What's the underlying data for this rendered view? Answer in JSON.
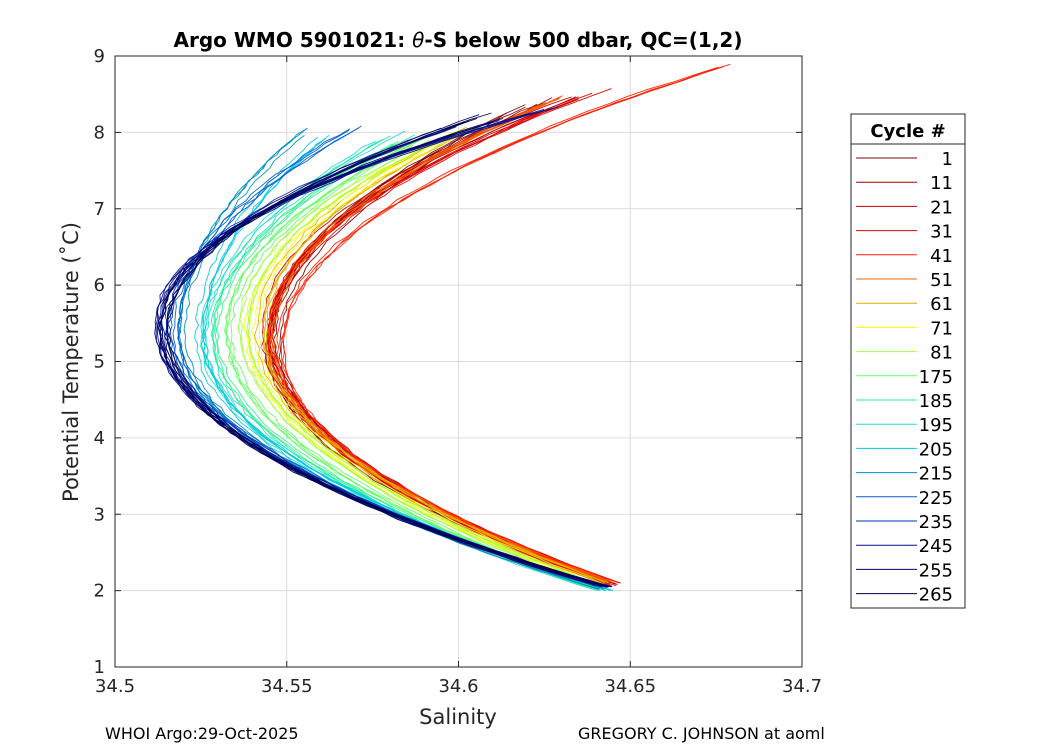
{
  "chart_data": {
    "type": "line",
    "title_prefix": "Argo WMO 5901021: ",
    "title_theta": "θ",
    "title_suffix": "-S below 500 dbar,  QC=(1,2)",
    "xlabel": "Salinity",
    "ylabel": "Potential Temperature (˚C)",
    "xlim": [
      34.5,
      34.7
    ],
    "ylim": [
      1,
      9
    ],
    "xticks": [
      "34.5",
      "34.55",
      "34.6",
      "34.65",
      "34.7"
    ],
    "xtick_values": [
      34.5,
      34.55,
      34.6,
      34.65,
      34.7
    ],
    "yticks": [
      "1",
      "2",
      "3",
      "4",
      "5",
      "6",
      "7",
      "8",
      "9"
    ],
    "ytick_values": [
      1,
      2,
      3,
      4,
      5,
      6,
      7,
      8,
      9
    ],
    "grid": true,
    "legend_title": "Cycle #",
    "legend_position": "right",
    "series": [
      {
        "name": "1",
        "color": "#800000",
        "bottom": [
          34.645,
          2.1
        ],
        "s_min": 34.546,
        "t_min": 5.2,
        "top": [
          34.618,
          8.3
        ]
      },
      {
        "name": "11",
        "color": "#A00000",
        "bottom": [
          34.644,
          2.12
        ],
        "s_min": 34.545,
        "t_min": 5.3,
        "top": [
          34.625,
          8.4
        ]
      },
      {
        "name": "21",
        "color": "#C00000",
        "bottom": [
          34.645,
          2.08
        ],
        "s_min": 34.544,
        "t_min": 5.4,
        "top": [
          34.63,
          8.4
        ]
      },
      {
        "name": "31",
        "color": "#E00000",
        "bottom": [
          34.646,
          2.06
        ],
        "s_min": 34.546,
        "t_min": 5.3,
        "top": [
          34.64,
          8.5
        ]
      },
      {
        "name": "41",
        "color": "#FF2000",
        "bottom": [
          34.645,
          2.1
        ],
        "s_min": 34.547,
        "t_min": 5.2,
        "top": [
          34.676,
          8.87
        ]
      },
      {
        "name": "51",
        "color": "#FF6000",
        "bottom": [
          34.643,
          2.12
        ],
        "s_min": 34.545,
        "t_min": 5.3,
        "top": [
          34.628,
          8.43
        ]
      },
      {
        "name": "61",
        "color": "#E0B000",
        "bottom": [
          34.642,
          2.1
        ],
        "s_min": 34.542,
        "t_min": 5.4,
        "top": [
          34.605,
          8.1
        ]
      },
      {
        "name": "71",
        "color": "#FFFF00",
        "bottom": [
          34.641,
          2.08
        ],
        "s_min": 34.54,
        "t_min": 5.4,
        "top": [
          34.6,
          8.0
        ]
      },
      {
        "name": "81",
        "color": "#A0FF40",
        "bottom": [
          34.64,
          2.06
        ],
        "s_min": 34.537,
        "t_min": 5.45,
        "top": [
          34.595,
          7.95
        ]
      },
      {
        "name": "175",
        "color": "#60FF60",
        "bottom": [
          34.64,
          2.04
        ],
        "s_min": 34.534,
        "t_min": 5.4,
        "top": [
          34.59,
          7.9
        ]
      },
      {
        "name": "185",
        "color": "#30F090",
        "bottom": [
          34.641,
          2.02
        ],
        "s_min": 34.53,
        "t_min": 5.35,
        "top": [
          34.585,
          7.9
        ]
      },
      {
        "name": "195",
        "color": "#20E0C0",
        "bottom": [
          34.642,
          2.0
        ],
        "s_min": 34.527,
        "t_min": 5.3,
        "top": [
          34.58,
          7.95
        ]
      },
      {
        "name": "205",
        "color": "#00C8E0",
        "bottom": [
          34.643,
          2.0
        ],
        "s_min": 34.524,
        "t_min": 5.3,
        "top": [
          34.56,
          7.95
        ]
      },
      {
        "name": "215",
        "color": "#0090C0",
        "bottom": [
          34.642,
          2.02
        ],
        "s_min": 34.52,
        "t_min": 5.35,
        "top": [
          34.555,
          7.98
        ]
      },
      {
        "name": "225",
        "color": "#0060D0",
        "bottom": [
          34.643,
          2.04
        ],
        "s_min": 34.518,
        "t_min": 5.4,
        "top": [
          34.57,
          8.05
        ]
      },
      {
        "name": "235",
        "color": "#0030B0",
        "bottom": [
          34.642,
          2.06
        ],
        "s_min": 34.515,
        "t_min": 5.45,
        "top": [
          34.6,
          8.1
        ]
      },
      {
        "name": "245",
        "color": "#001090",
        "bottom": [
          34.641,
          2.08
        ],
        "s_min": 34.513,
        "t_min": 5.5,
        "top": [
          34.626,
          8.3
        ]
      },
      {
        "name": "255",
        "color": "#000070",
        "bottom": [
          34.643,
          2.05
        ],
        "s_min": 34.512,
        "t_min": 5.45,
        "top": [
          34.61,
          8.15
        ]
      },
      {
        "name": "265",
        "color": "#000050",
        "bottom": [
          34.642,
          2.05
        ],
        "s_min": 34.514,
        "t_min": 5.4,
        "top": [
          34.605,
          8.2
        ]
      }
    ]
  },
  "footer": {
    "left": "WHOI Argo:29-Oct-2025",
    "right": "GREGORY C. JOHNSON at aoml"
  }
}
